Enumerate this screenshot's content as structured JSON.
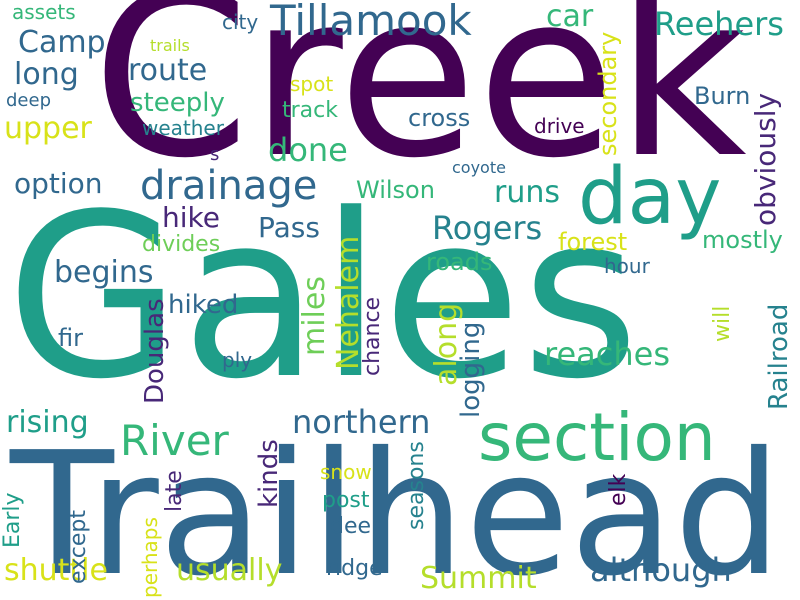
{
  "colors": {
    "purple": "#440154",
    "indigo": "#482878",
    "blue": "#31688e",
    "teal": "#26828e",
    "green": "#1f9e89",
    "mint": "#35b779",
    "lime": "#6ece58",
    "yellowgreen": "#b5de2b",
    "yellow": "#d8e219"
  },
  "words": {
    "creek": "Creek",
    "gales": "Gales",
    "trailhead": "Trailhead",
    "section": "section",
    "day": "day",
    "tillamook": "Tillamook",
    "drainage": "drainage",
    "river": "River",
    "reehers": "Reehers",
    "camp": "Camp",
    "long": "long",
    "route": "route",
    "upper": "upper",
    "steeply": "steeply",
    "weather": "weather",
    "done": "done",
    "track": "track",
    "option": "option",
    "hike": "hike",
    "pass": "Pass",
    "rogers": "Rogers",
    "runs": "runs",
    "wilson": "Wilson",
    "begins": "begins",
    "divides": "divides",
    "forest": "forest",
    "mostly": "mostly",
    "roads": "roads",
    "hour": "hour",
    "hiked": "hiked",
    "fir": "fir",
    "ply": "ply",
    "reaches": "reaches",
    "rising": "rising",
    "northern": "northern",
    "shuttle": "shuttle",
    "usually": "usually",
    "summit": "Summit",
    "although": "although",
    "ridge": "ridge",
    "deer": "deer",
    "post": "post",
    "snow": "snow",
    "car": "car",
    "city": "city",
    "trails": "trails",
    "spot": "spot",
    "cross": "cross",
    "drive": "drive",
    "coyote": "coyote",
    "s": "s",
    "assets": "assets",
    "deep": "deep",
    "burn": "Burn",
    "obviously": "obviously",
    "secondary": "secondary",
    "nehalem": "Nehalem",
    "miles": "miles",
    "along": "along",
    "logging": "logging",
    "chance": "chance",
    "douglas": "Douglas",
    "railroad": "Railroad",
    "will": "will",
    "kinds": "kinds",
    "late": "late",
    "elk": "elk",
    "seasons": "seasons",
    "perhaps": "perhaps",
    "except": "except",
    "early": "Early"
  }
}
